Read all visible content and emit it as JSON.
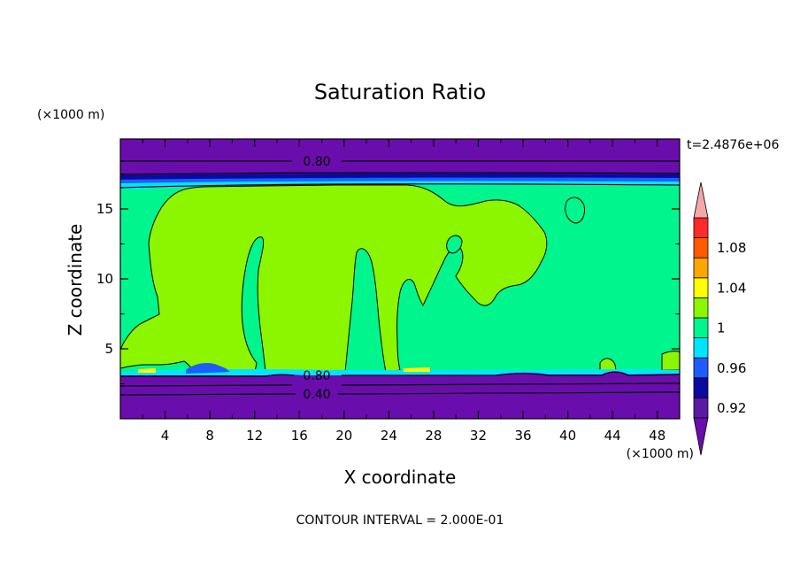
{
  "chart_data": {
    "type": "heatmap",
    "title": "Saturation Ratio",
    "xlabel": "X coordinate",
    "ylabel": "Z coordinate",
    "x_unit": "(×1000 m)",
    "y_unit": "(×1000 m)",
    "time_label": "t=2.4876e+06",
    "footer": "CONTOUR INTERVAL = 2.000E-01",
    "xlim": [
      0,
      50
    ],
    "ylim": [
      0,
      20
    ],
    "x_ticks": [
      4,
      8,
      12,
      16,
      20,
      24,
      28,
      32,
      36,
      40,
      44,
      48
    ],
    "y_ticks": [
      5,
      10,
      15
    ],
    "contour_labels": [
      "0.80",
      "0.80",
      "0.40"
    ],
    "colorbar": {
      "tick_labels": [
        "1.08",
        "1.04",
        "1",
        "0.96",
        "0.92"
      ],
      "levels": [
        {
          "range": "<0.90",
          "color": "#6a0dad"
        },
        {
          "range": "0.90-0.92",
          "color": "#5a1aa6"
        },
        {
          "range": "0.92-0.94",
          "color": "#0a0aa0"
        },
        {
          "range": "0.94-0.96",
          "color": "#1e5cff"
        },
        {
          "range": "0.96-0.98",
          "color": "#00e5ff"
        },
        {
          "range": "0.98-1.00",
          "color": "#00f58c"
        },
        {
          "range": "1.00-1.02",
          "color": "#8cf500"
        },
        {
          "range": "1.02-1.04",
          "color": "#ffff00"
        },
        {
          "range": "1.04-1.06",
          "color": "#ffa500"
        },
        {
          "range": "1.06-1.08",
          "color": "#ff5a00"
        },
        {
          "range": "1.08-1.10",
          "color": "#ff2a2a"
        },
        {
          "range": ">1.10",
          "color": "#f5a8a8"
        }
      ]
    },
    "regions": [
      {
        "name": "upper-dry-layer",
        "z_range": [
          17,
          20
        ],
        "value_range": "<0.90"
      },
      {
        "name": "near-saturated-layer",
        "z_range": [
          3.3,
          17
        ],
        "value_range": "0.98-1.02"
      },
      {
        "name": "lower-dry-layer",
        "z_range": [
          0,
          3.3
        ],
        "value_range": "<0.90"
      }
    ]
  }
}
